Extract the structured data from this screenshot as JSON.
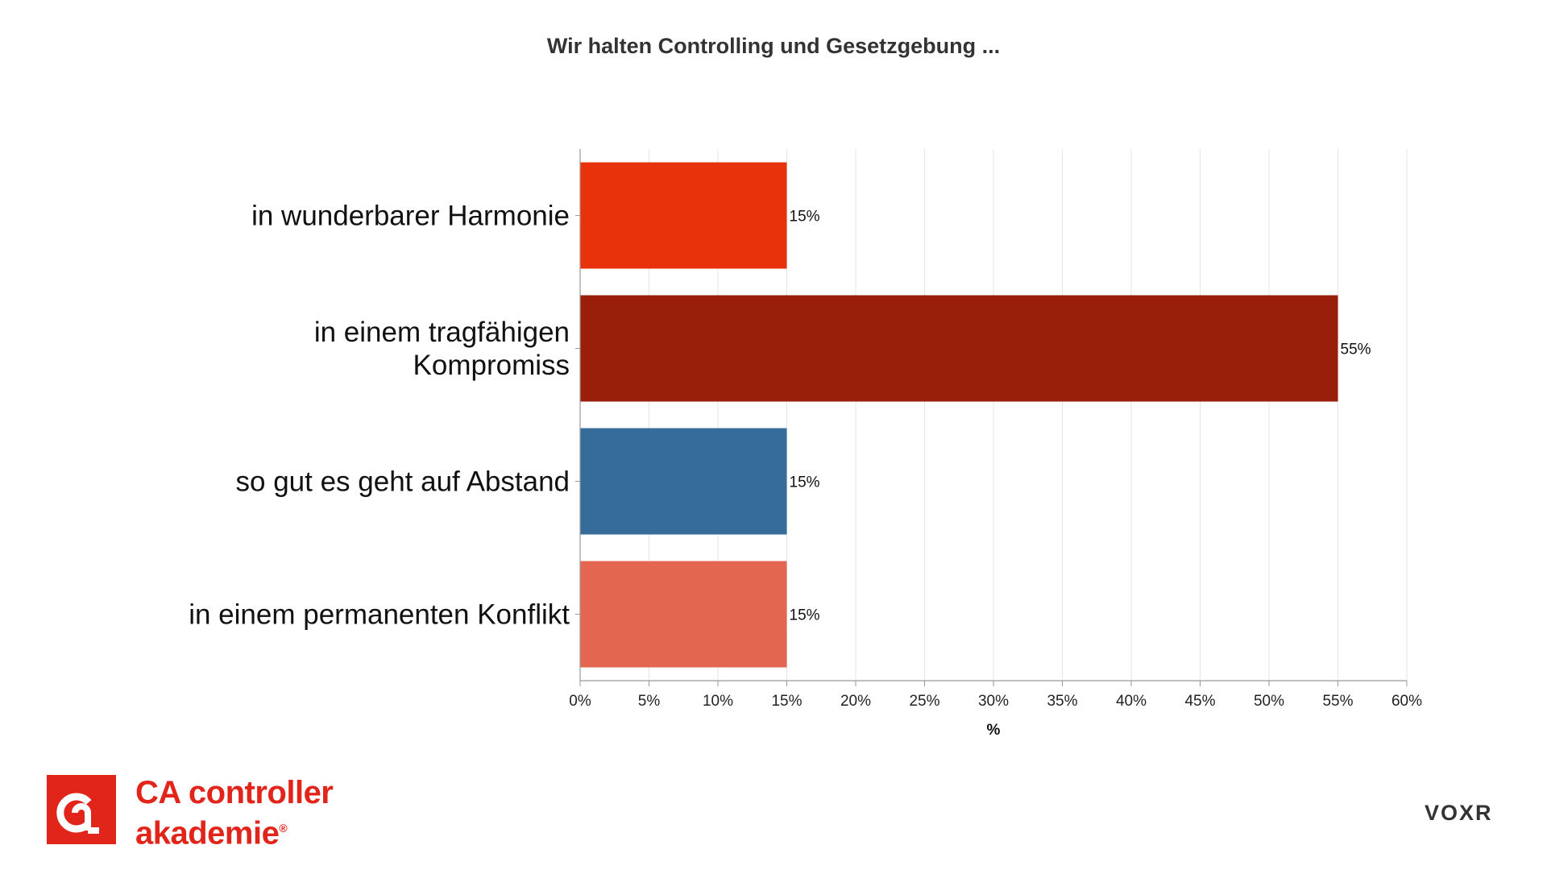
{
  "chart_data": {
    "type": "bar",
    "orientation": "horizontal",
    "title": "Wir halten Controlling und Gesetzgebung ...",
    "categories": [
      [
        "in wunderbarer Harmonie"
      ],
      [
        "in einem tragfähigen",
        "Kompromiss"
      ],
      [
        "so gut es geht auf Abstand"
      ],
      [
        "in einem permanenten Konflikt"
      ]
    ],
    "values": [
      15,
      55,
      15,
      15
    ],
    "data_labels": [
      "15%",
      "55%",
      "15%",
      "15%"
    ],
    "colors": [
      "#e8320c",
      "#9a1f0a",
      "#356c99",
      "#e36651"
    ],
    "xlabel": "%",
    "xlim": [
      0,
      60
    ],
    "xticks": [
      0,
      5,
      10,
      15,
      20,
      25,
      30,
      35,
      40,
      45,
      50,
      55,
      60
    ],
    "xtick_labels": [
      "0%",
      "5%",
      "10%",
      "15%",
      "20%",
      "25%",
      "30%",
      "35%",
      "40%",
      "45%",
      "50%",
      "55%",
      "60%"
    ],
    "grid": "vertical"
  },
  "branding": {
    "logo_line1": "CA controller",
    "logo_line2": "akademie",
    "logo_reg": "®",
    "voxr": "VOXR"
  }
}
